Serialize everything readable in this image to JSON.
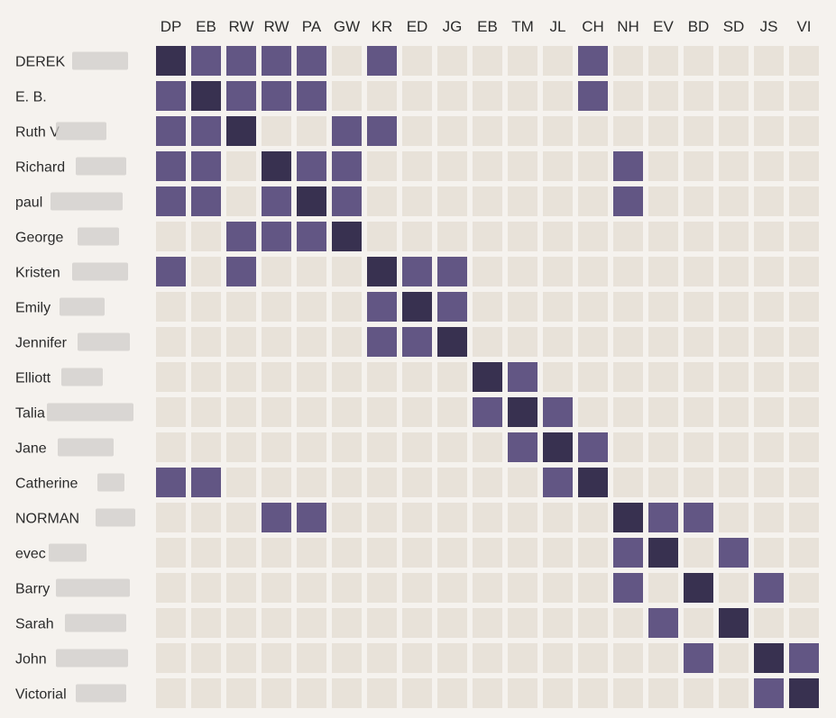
{
  "chart_data": {
    "type": "heatmap",
    "columns": [
      "DP",
      "EB",
      "RW",
      "RW",
      "PA",
      "GW",
      "KR",
      "ED",
      "JG",
      "EB",
      "TM",
      "JL",
      "CH",
      "NH",
      "EV",
      "BD",
      "SD",
      "JS",
      "VI"
    ],
    "rows": [
      "DEREK",
      "E. B.",
      "Ruth V",
      "Richard",
      "paul",
      "George",
      "Kristen",
      "Emily",
      "Jennifer",
      "Elliott",
      "Talia",
      "Jane",
      "Catherine",
      "NORMAN",
      "evec",
      "Barry",
      "Sarah",
      "John",
      "Victorial"
    ],
    "values_legend": {
      "0": "none",
      "1": "connection",
      "2": "self"
    },
    "matrix": [
      [
        2,
        1,
        1,
        1,
        1,
        0,
        1,
        0,
        0,
        0,
        0,
        0,
        1,
        0,
        0,
        0,
        0,
        0,
        0
      ],
      [
        1,
        2,
        1,
        1,
        1,
        0,
        0,
        0,
        0,
        0,
        0,
        0,
        1,
        0,
        0,
        0,
        0,
        0,
        0
      ],
      [
        1,
        1,
        2,
        0,
        0,
        1,
        1,
        0,
        0,
        0,
        0,
        0,
        0,
        0,
        0,
        0,
        0,
        0,
        0
      ],
      [
        1,
        1,
        0,
        2,
        1,
        1,
        0,
        0,
        0,
        0,
        0,
        0,
        0,
        1,
        0,
        0,
        0,
        0,
        0
      ],
      [
        1,
        1,
        0,
        1,
        2,
        1,
        0,
        0,
        0,
        0,
        0,
        0,
        0,
        1,
        0,
        0,
        0,
        0,
        0
      ],
      [
        0,
        0,
        1,
        1,
        1,
        2,
        0,
        0,
        0,
        0,
        0,
        0,
        0,
        0,
        0,
        0,
        0,
        0,
        0
      ],
      [
        1,
        0,
        1,
        0,
        0,
        0,
        2,
        1,
        1,
        0,
        0,
        0,
        0,
        0,
        0,
        0,
        0,
        0,
        0
      ],
      [
        0,
        0,
        0,
        0,
        0,
        0,
        1,
        2,
        1,
        0,
        0,
        0,
        0,
        0,
        0,
        0,
        0,
        0,
        0
      ],
      [
        0,
        0,
        0,
        0,
        0,
        0,
        1,
        1,
        2,
        0,
        0,
        0,
        0,
        0,
        0,
        0,
        0,
        0,
        0
      ],
      [
        0,
        0,
        0,
        0,
        0,
        0,
        0,
        0,
        0,
        2,
        1,
        0,
        0,
        0,
        0,
        0,
        0,
        0,
        0
      ],
      [
        0,
        0,
        0,
        0,
        0,
        0,
        0,
        0,
        0,
        1,
        2,
        1,
        0,
        0,
        0,
        0,
        0,
        0,
        0
      ],
      [
        0,
        0,
        0,
        0,
        0,
        0,
        0,
        0,
        0,
        0,
        1,
        2,
        1,
        0,
        0,
        0,
        0,
        0,
        0
      ],
      [
        1,
        1,
        0,
        0,
        0,
        0,
        0,
        0,
        0,
        0,
        0,
        1,
        2,
        0,
        0,
        0,
        0,
        0,
        0
      ],
      [
        0,
        0,
        0,
        1,
        1,
        0,
        0,
        0,
        0,
        0,
        0,
        0,
        0,
        2,
        1,
        1,
        0,
        0,
        0
      ],
      [
        0,
        0,
        0,
        0,
        0,
        0,
        0,
        0,
        0,
        0,
        0,
        0,
        0,
        1,
        2,
        0,
        1,
        0,
        0
      ],
      [
        0,
        0,
        0,
        0,
        0,
        0,
        0,
        0,
        0,
        0,
        0,
        0,
        0,
        1,
        0,
        2,
        0,
        1,
        0
      ],
      [
        0,
        0,
        0,
        0,
        0,
        0,
        0,
        0,
        0,
        0,
        0,
        0,
        0,
        0,
        1,
        0,
        2,
        0,
        0
      ],
      [
        0,
        0,
        0,
        0,
        0,
        0,
        0,
        0,
        0,
        0,
        0,
        0,
        0,
        0,
        0,
        1,
        0,
        2,
        1
      ],
      [
        0,
        0,
        0,
        0,
        0,
        0,
        0,
        0,
        0,
        0,
        0,
        0,
        0,
        0,
        0,
        0,
        0,
        1,
        2
      ]
    ],
    "colors": {
      "none": "#e8e2d9",
      "connection": "#625684",
      "self": "#383150",
      "background": "#f5f2ee"
    },
    "legend": "none",
    "grid": false
  }
}
